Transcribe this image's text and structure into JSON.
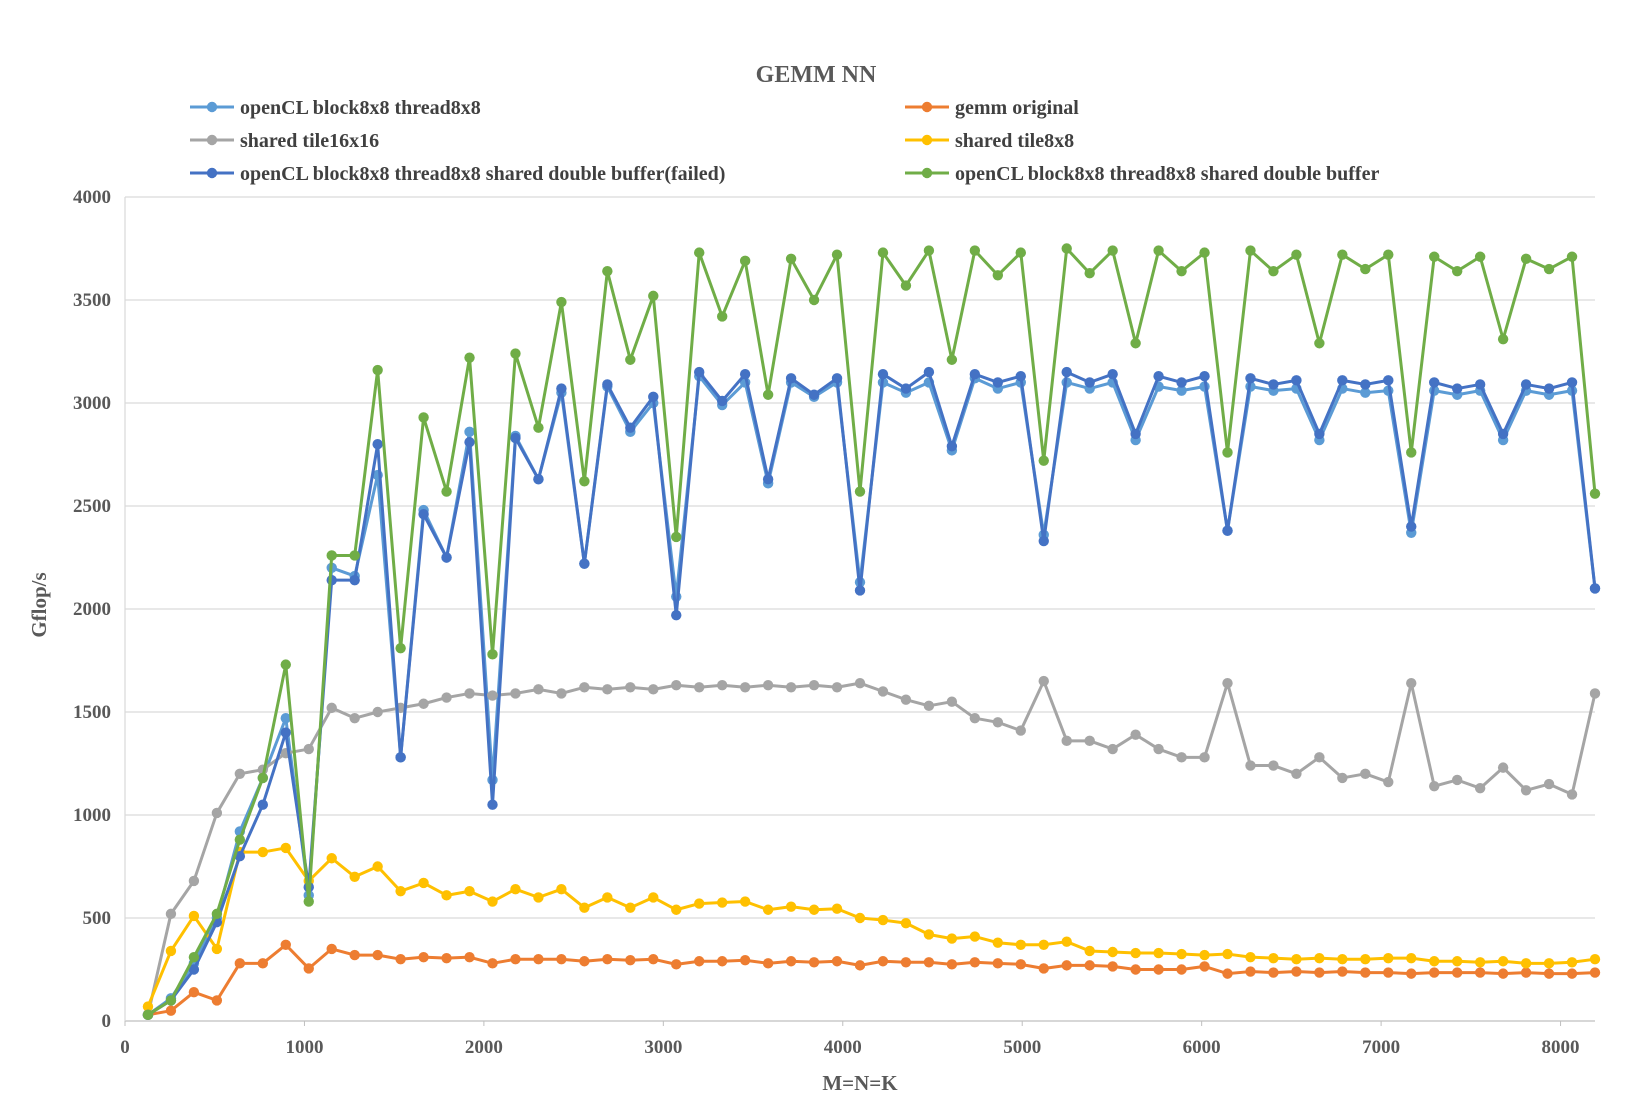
{
  "chart_data": {
    "type": "line",
    "title": "GEMM NN",
    "xlabel": "M=N=K",
    "ylabel": "Gflop/s",
    "xlim": [
      0,
      8192
    ],
    "ylim": [
      0,
      4000
    ],
    "xticks": [
      "0",
      "1000",
      "2000",
      "3000",
      "4000",
      "5000",
      "6000",
      "7000",
      "8000"
    ],
    "yticks": [
      "0",
      "500",
      "1000",
      "1500",
      "2000",
      "2500",
      "3000",
      "3500",
      "4000"
    ],
    "grid": "horizontal",
    "legend_position": "top",
    "x": [
      128,
      256,
      384,
      512,
      640,
      768,
      896,
      1024,
      1152,
      1280,
      1408,
      1536,
      1664,
      1792,
      1920,
      2048,
      2176,
      2304,
      2432,
      2560,
      2688,
      2816,
      2944,
      3072,
      3200,
      3328,
      3456,
      3584,
      3712,
      3840,
      3968,
      4096,
      4224,
      4352,
      4480,
      4608,
      4736,
      4864,
      4992,
      5120,
      5248,
      5376,
      5504,
      5632,
      5760,
      5888,
      6016,
      6144,
      6272,
      6400,
      6528,
      6656,
      6784,
      6912,
      7040,
      7168,
      7296,
      7424,
      7552,
      7680,
      7808,
      7936,
      8064,
      8192
    ],
    "series": [
      {
        "name": "openCL block8x8 thread8x8",
        "color": "#5B9BD5",
        "values": [
          30,
          110,
          280,
          500,
          920,
          1180,
          1470,
          610,
          2200,
          2160,
          2650,
          1280,
          2480,
          2250,
          2860,
          1170,
          2840,
          2630,
          3050,
          2220,
          3080,
          2860,
          3000,
          2060,
          3130,
          2990,
          3100,
          2610,
          3100,
          3030,
          3100,
          2130,
          3100,
          3050,
          3100,
          2770,
          3120,
          3070,
          3100,
          2360,
          3100,
          3070,
          3100,
          2820,
          3080,
          3060,
          3080,
          2380,
          3080,
          3060,
          3070,
          2820,
          3070,
          3050,
          3060,
          2370,
          3060,
          3040,
          3060,
          2820,
          3060,
          3040,
          3060,
          2100
        ]
      },
      {
        "name": "gemm original",
        "color": "#ED7D31",
        "values": [
          30,
          50,
          140,
          100,
          280,
          280,
          370,
          255,
          350,
          320,
          320,
          300,
          310,
          305,
          310,
          280,
          300,
          300,
          300,
          290,
          300,
          295,
          300,
          275,
          290,
          290,
          295,
          280,
          290,
          285,
          290,
          270,
          290,
          285,
          285,
          275,
          285,
          280,
          275,
          255,
          270,
          270,
          265,
          250,
          250,
          250,
          265,
          230,
          240,
          235,
          240,
          235,
          240,
          235,
          235,
          230,
          235,
          235,
          235,
          230,
          235,
          230,
          230,
          235
        ]
      },
      {
        "name": "shared tile16x16",
        "color": "#A5A5A5",
        "values": [
          30,
          520,
          680,
          1010,
          1200,
          1220,
          1300,
          1320,
          1520,
          1470,
          1500,
          1520,
          1540,
          1570,
          1590,
          1580,
          1590,
          1610,
          1590,
          1620,
          1610,
          1620,
          1610,
          1630,
          1620,
          1630,
          1620,
          1630,
          1620,
          1630,
          1620,
          1640,
          1600,
          1560,
          1530,
          1550,
          1470,
          1450,
          1410,
          1650,
          1360,
          1360,
          1320,
          1390,
          1320,
          1280,
          1280,
          1640,
          1240,
          1240,
          1200,
          1280,
          1180,
          1200,
          1160,
          1640,
          1140,
          1170,
          1130,
          1230,
          1120,
          1150,
          1100,
          1590
        ]
      },
      {
        "name": "shared tile8x8",
        "color": "#FFC000",
        "values": [
          70,
          340,
          510,
          350,
          820,
          820,
          840,
          680,
          790,
          700,
          750,
          630,
          670,
          610,
          630,
          580,
          640,
          600,
          640,
          550,
          600,
          550,
          600,
          540,
          570,
          575,
          580,
          540,
          555,
          540,
          545,
          500,
          490,
          475,
          420,
          400,
          410,
          380,
          370,
          370,
          385,
          340,
          335,
          330,
          330,
          325,
          320,
          325,
          310,
          305,
          300,
          305,
          300,
          300,
          305,
          305,
          290,
          290,
          285,
          290,
          280,
          280,
          285,
          300
        ]
      },
      {
        "name": "openCL block8x8 thread8x8 shared double buffer(failed)",
        "color": "#4472C4",
        "values": [
          30,
          100,
          250,
          480,
          800,
          1050,
          1400,
          650,
          2140,
          2140,
          2800,
          1280,
          2460,
          2250,
          2810,
          1050,
          2830,
          2630,
          3070,
          2220,
          3090,
          2880,
          3030,
          1970,
          3150,
          3010,
          3140,
          2630,
          3120,
          3040,
          3120,
          2090,
          3140,
          3070,
          3150,
          2790,
          3140,
          3100,
          3130,
          2330,
          3150,
          3100,
          3140,
          2850,
          3130,
          3100,
          3130,
          2380,
          3120,
          3090,
          3110,
          2850,
          3110,
          3090,
          3110,
          2400,
          3100,
          3070,
          3090,
          2850,
          3090,
          3070,
          3100,
          2100
        ]
      },
      {
        "name": "openCL block8x8 thread8x8 shared double buffer",
        "color": "#70AD47",
        "values": [
          30,
          100,
          310,
          520,
          880,
          1180,
          1730,
          580,
          2260,
          2260,
          3160,
          1810,
          2930,
          2570,
          3220,
          1780,
          3240,
          2880,
          3490,
          2620,
          3640,
          3210,
          3520,
          2350,
          3730,
          3420,
          3690,
          3040,
          3700,
          3500,
          3720,
          2570,
          3730,
          3570,
          3740,
          3210,
          3740,
          3620,
          3730,
          2720,
          3750,
          3630,
          3740,
          3290,
          3740,
          3640,
          3730,
          2760,
          3740,
          3640,
          3720,
          3290,
          3720,
          3650,
          3720,
          2760,
          3710,
          3640,
          3710,
          3310,
          3700,
          3650,
          3710,
          2560
        ]
      }
    ]
  }
}
